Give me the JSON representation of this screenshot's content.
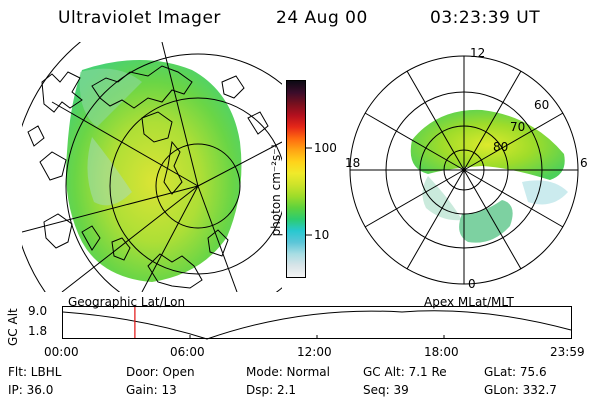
{
  "header": {
    "instrument": "Ultraviolet Imager",
    "date": "24 Aug 00",
    "time": "03:23:39  UT"
  },
  "colorbar": {
    "unit": "photon cm⁻²s⁻¹",
    "ticks": [
      "100",
      "10"
    ],
    "colors": [
      "#f4f4f4",
      "#d8e4e8",
      "#a8dde3",
      "#5cc6d8",
      "#28c8d0",
      "#2dcc70",
      "#5ed23d",
      "#9edc2a",
      "#cde32a",
      "#f0ea2a",
      "#ffd21a",
      "#ffa514",
      "#ff6a10",
      "#e62818",
      "#b4101e",
      "#78101e",
      "#3a0c2a",
      "#0c0a14"
    ]
  },
  "left_map": {
    "label": "Geographic Lat/Lon"
  },
  "right_map": {
    "label": "Apex MLat/MLT",
    "mlt_labels": {
      "top": "12",
      "left": "18",
      "right": "6",
      "bottom": "0"
    },
    "lat_labels": [
      "60",
      "70",
      "80"
    ]
  },
  "timeline": {
    "ylabel": "GC Alt",
    "yticks": [
      "9.0",
      "1.8"
    ],
    "xticks": [
      "00:00",
      "06:00",
      "12:00",
      "18:00",
      "23:59"
    ],
    "marker_time": "03:23:39",
    "marker_color": "#e01010"
  },
  "info": {
    "filter": "Flt: LBHL",
    "door": "Door: Open",
    "mode": "Mode: Normal",
    "gc_alt": "GC Alt: 7.1 Re",
    "glat": "GLat:  75.6",
    "ip": "IP: 36.0",
    "gain": "Gain: 13",
    "dsp": "Dsp:    2.1",
    "seq": "Seq: 39",
    "glon": "GLon: 332.7"
  }
}
